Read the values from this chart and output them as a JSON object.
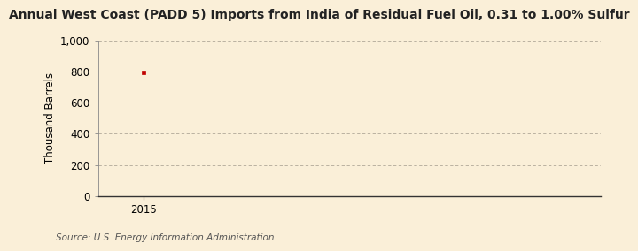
{
  "title": "Annual West Coast (PADD 5) Imports from India of Residual Fuel Oil, 0.31 to 1.00% Sulfur",
  "ylabel": "Thousand Barrels",
  "source": "Source: U.S. Energy Information Administration",
  "x_data": [
    2015
  ],
  "y_data": [
    796
  ],
  "xlim": [
    2014.3,
    2022
  ],
  "ylim": [
    0,
    1000
  ],
  "yticks": [
    0,
    200,
    400,
    600,
    800,
    1000
  ],
  "xticks": [
    2015
  ],
  "background_color": "#faefd8",
  "plot_bg_color": "#faefd8",
  "grid_color": "#b0a898",
  "line_color": "#c00000",
  "marker_color": "#c00000",
  "title_fontsize": 10,
  "label_fontsize": 8.5,
  "tick_fontsize": 8.5,
  "source_fontsize": 7.5
}
